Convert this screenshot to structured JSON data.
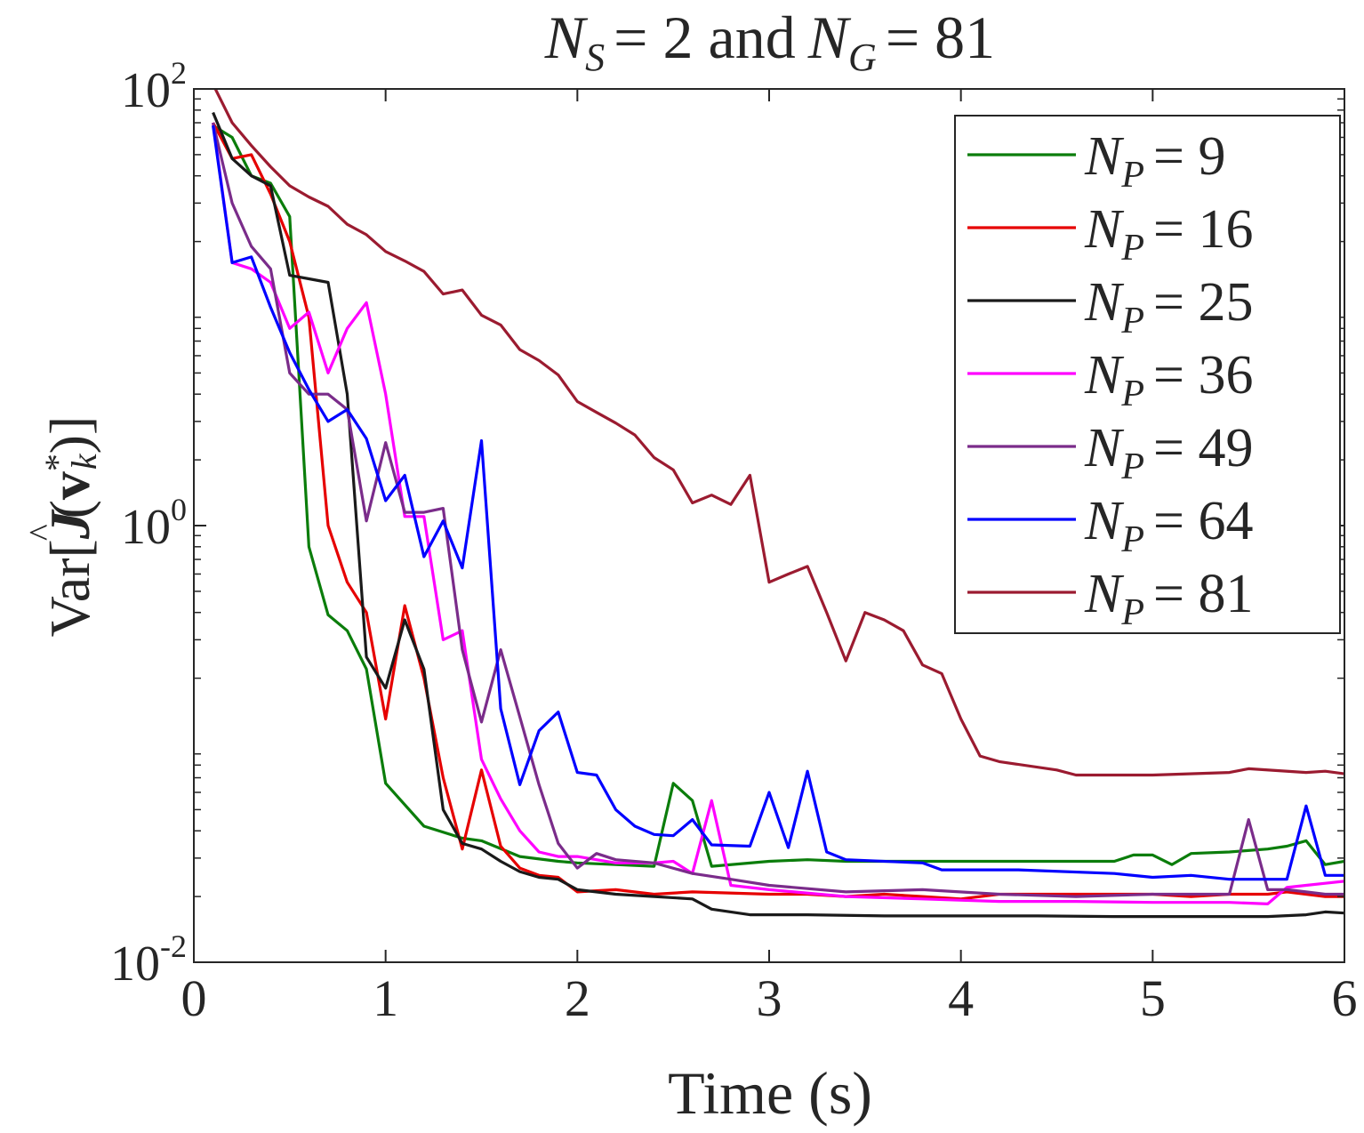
{
  "chart_data": {
    "type": "line",
    "title": {
      "left_var": "N",
      "left_sub": "S",
      "eq1": "= 2 and",
      "right_var": "N",
      "right_sub": "G",
      "eq2": "= 81"
    },
    "xlabel": "Time (s)",
    "ylabel": {
      "prefix": "Var[",
      "func": "J",
      "hat": "^",
      "arg_open": "(",
      "vec": "v",
      "sup": "*",
      "sub": "k",
      "arg_close": ")]"
    },
    "x_scale": "linear",
    "y_scale": "log",
    "xlim": [
      0,
      6
    ],
    "ylim": [
      0.01,
      100
    ],
    "x_ticks": [
      0,
      1,
      2,
      3,
      4,
      5,
      6
    ],
    "x_tick_labels": [
      "0",
      "1",
      "2",
      "3",
      "4",
      "5",
      "6"
    ],
    "y_ticks": [
      {
        "value": 100,
        "base": "10",
        "exp": "2"
      },
      {
        "value": 1,
        "base": "10",
        "exp": "0"
      },
      {
        "value": 0.01,
        "base": "10",
        "exp": "-2"
      }
    ],
    "legend_position": "top-right",
    "series": [
      {
        "name": "N_P = 9",
        "label_var": "N",
        "label_sub": "P",
        "label_eq": "= 9",
        "color": "#0b7d0b",
        "x": [
          0.1,
          0.2,
          0.3,
          0.4,
          0.5,
          0.6,
          0.7,
          0.8,
          0.9,
          1.0,
          1.2,
          1.4,
          1.5,
          1.7,
          1.9,
          2.0,
          2.2,
          2.4,
          2.5,
          2.6,
          2.7,
          3.0,
          3.2,
          3.4,
          3.6,
          3.8,
          3.9,
          4.0,
          4.1,
          4.5,
          4.8,
          4.9,
          5.0,
          5.1,
          5.2,
          5.4,
          5.6,
          5.7,
          5.8,
          5.9,
          6.0
        ],
        "y": [
          68,
          60,
          40,
          37,
          26,
          0.8,
          0.39,
          0.33,
          0.22,
          0.066,
          0.042,
          0.037,
          0.036,
          0.0305,
          0.029,
          0.0285,
          0.028,
          0.0275,
          0.066,
          0.055,
          0.0275,
          0.029,
          0.0295,
          0.029,
          0.029,
          0.029,
          0.029,
          0.029,
          0.029,
          0.029,
          0.029,
          0.031,
          0.031,
          0.028,
          0.0315,
          0.032,
          0.033,
          0.034,
          0.036,
          0.028,
          0.029
        ]
      },
      {
        "name": "N_P = 16",
        "label_var": "N",
        "label_sub": "P",
        "label_eq": "= 16",
        "color": "#e60000",
        "x": [
          0.1,
          0.2,
          0.3,
          0.4,
          0.5,
          0.6,
          0.7,
          0.8,
          0.9,
          1.0,
          1.1,
          1.2,
          1.3,
          1.4,
          1.5,
          1.6,
          1.7,
          1.8,
          1.9,
          2.0,
          2.2,
          2.4,
          2.6,
          3.0,
          3.2,
          3.4,
          3.6,
          3.8,
          4.0,
          4.2,
          4.4,
          4.6,
          4.8,
          5.0,
          5.2,
          5.4,
          5.6,
          5.7,
          5.8,
          5.9,
          6.0
        ],
        "y": [
          70,
          48,
          50,
          33,
          20,
          9,
          1.0,
          0.55,
          0.4,
          0.13,
          0.43,
          0.2,
          0.07,
          0.033,
          0.076,
          0.034,
          0.027,
          0.025,
          0.0245,
          0.021,
          0.0215,
          0.0205,
          0.021,
          0.0205,
          0.0205,
          0.02,
          0.0205,
          0.02,
          0.0195,
          0.0205,
          0.0205,
          0.0205,
          0.0205,
          0.0205,
          0.02,
          0.0205,
          0.0205,
          0.021,
          0.0205,
          0.02,
          0.02
        ]
      },
      {
        "name": "N_P = 25",
        "label_var": "N",
        "label_sub": "P",
        "label_eq": "= 25",
        "color": "#1a1a1a",
        "x": [
          0.1,
          0.2,
          0.3,
          0.4,
          0.5,
          0.6,
          0.7,
          0.8,
          0.9,
          1.0,
          1.1,
          1.2,
          1.3,
          1.4,
          1.5,
          1.6,
          1.7,
          1.8,
          1.9,
          2.0,
          2.2,
          2.4,
          2.6,
          2.7,
          2.9,
          3.2,
          3.6,
          4.0,
          4.4,
          4.8,
          5.2,
          5.6,
          5.8,
          5.9,
          6.0
        ],
        "y": [
          78,
          48,
          40,
          36,
          14,
          13.5,
          13,
          4,
          0.25,
          0.18,
          0.37,
          0.22,
          0.05,
          0.035,
          0.033,
          0.029,
          0.026,
          0.0245,
          0.024,
          0.0215,
          0.0205,
          0.02,
          0.0195,
          0.0175,
          0.0165,
          0.0165,
          0.0163,
          0.0163,
          0.0163,
          0.0162,
          0.0162,
          0.0162,
          0.0165,
          0.017,
          0.0168
        ]
      },
      {
        "name": "N_P = 36",
        "label_var": "N",
        "label_sub": "P",
        "label_eq": "= 36",
        "color": "#ff00ff",
        "x": [
          0.1,
          0.2,
          0.3,
          0.4,
          0.5,
          0.6,
          0.7,
          0.8,
          0.9,
          1.0,
          1.1,
          1.2,
          1.3,
          1.4,
          1.5,
          1.6,
          1.7,
          1.8,
          1.9,
          2.0,
          2.2,
          2.4,
          2.5,
          2.6,
          2.7,
          2.8,
          3.0,
          3.4,
          3.8,
          4.2,
          4.6,
          5.0,
          5.4,
          5.6,
          5.7,
          5.8,
          5.9,
          6.0
        ],
        "y": [
          70,
          16,
          15,
          13,
          8,
          9.5,
          5,
          8,
          10.5,
          4,
          1.1,
          1.1,
          0.3,
          0.33,
          0.085,
          0.056,
          0.04,
          0.032,
          0.0305,
          0.0305,
          0.0285,
          0.0285,
          0.029,
          0.0255,
          0.055,
          0.0225,
          0.0215,
          0.02,
          0.0195,
          0.019,
          0.019,
          0.0188,
          0.0188,
          0.0185,
          0.022,
          0.0225,
          0.023,
          0.0235
        ]
      },
      {
        "name": "N_P = 49",
        "label_var": "N",
        "label_sub": "P",
        "label_eq": "= 49",
        "color": "#7a2c8a",
        "x": [
          0.1,
          0.2,
          0.3,
          0.4,
          0.5,
          0.6,
          0.7,
          0.8,
          0.9,
          1.0,
          1.1,
          1.2,
          1.3,
          1.4,
          1.5,
          1.6,
          1.7,
          1.8,
          1.9,
          2.0,
          2.1,
          2.2,
          2.4,
          2.6,
          2.8,
          3.0,
          3.4,
          3.8,
          4.2,
          4.6,
          5.0,
          5.4,
          5.5,
          5.6,
          5.7,
          5.8,
          5.9,
          6.0
        ],
        "y": [
          70,
          30,
          19,
          15,
          5,
          4,
          4,
          3.4,
          1.05,
          2.4,
          1.15,
          1.15,
          1.2,
          0.27,
          0.126,
          0.27,
          0.133,
          0.065,
          0.035,
          0.027,
          0.0315,
          0.0295,
          0.0285,
          0.0255,
          0.024,
          0.0225,
          0.021,
          0.0215,
          0.0205,
          0.02,
          0.0205,
          0.0205,
          0.045,
          0.0215,
          0.0215,
          0.021,
          0.0205,
          0.0205
        ]
      },
      {
        "name": "N_P = 64",
        "label_var": "N",
        "label_sub": "P",
        "label_eq": "= 64",
        "color": "#0000ff",
        "x": [
          0.1,
          0.2,
          0.3,
          0.4,
          0.5,
          0.6,
          0.7,
          0.8,
          0.9,
          1.0,
          1.1,
          1.2,
          1.3,
          1.4,
          1.5,
          1.6,
          1.7,
          1.8,
          1.9,
          2.0,
          2.1,
          2.2,
          2.3,
          2.4,
          2.5,
          2.6,
          2.7,
          2.9,
          3.0,
          3.1,
          3.2,
          3.3,
          3.4,
          3.8,
          3.9,
          4.3,
          4.8,
          5.0,
          5.2,
          5.4,
          5.7,
          5.8,
          5.9,
          6.0
        ],
        "y": [
          68,
          16,
          17,
          10,
          6.2,
          4.2,
          3,
          3.4,
          2.5,
          1.3,
          1.7,
          0.72,
          1.05,
          0.64,
          2.45,
          0.145,
          0.065,
          0.115,
          0.14,
          0.074,
          0.072,
          0.05,
          0.042,
          0.0385,
          0.038,
          0.045,
          0.0345,
          0.034,
          0.06,
          0.0335,
          0.075,
          0.032,
          0.0295,
          0.0285,
          0.0265,
          0.0265,
          0.0255,
          0.0245,
          0.025,
          0.024,
          0.024,
          0.052,
          0.025,
          0.025
        ]
      },
      {
        "name": "N_P = 81",
        "label_var": "N",
        "label_sub": "P",
        "label_eq": "= 81",
        "color": "#9b1b30",
        "x": [
          0.1,
          0.2,
          0.3,
          0.4,
          0.5,
          0.6,
          0.7,
          0.8,
          0.9,
          1.0,
          1.1,
          1.2,
          1.3,
          1.4,
          1.5,
          1.6,
          1.7,
          1.8,
          1.9,
          2.0,
          2.1,
          2.2,
          2.3,
          2.4,
          2.5,
          2.6,
          2.7,
          2.8,
          2.9,
          3.0,
          3.1,
          3.2,
          3.3,
          3.4,
          3.5,
          3.6,
          3.7,
          3.8,
          3.9,
          4.0,
          4.1,
          4.2,
          4.5,
          4.6,
          5.0,
          5.4,
          5.5,
          5.8,
          5.9,
          6.0
        ],
        "y": [
          105,
          70,
          55,
          44,
          36,
          32,
          29,
          24,
          21.5,
          18,
          16.3,
          14.6,
          11.5,
          12,
          9.2,
          8.3,
          6.4,
          5.7,
          4.9,
          3.7,
          3.3,
          2.95,
          2.6,
          2.05,
          1.8,
          1.27,
          1.38,
          1.25,
          1.7,
          0.55,
          0.6,
          0.65,
          0.4,
          0.24,
          0.4,
          0.37,
          0.33,
          0.23,
          0.21,
          0.13,
          0.088,
          0.083,
          0.076,
          0.072,
          0.072,
          0.074,
          0.077,
          0.074,
          0.075,
          0.073
        ]
      }
    ]
  }
}
